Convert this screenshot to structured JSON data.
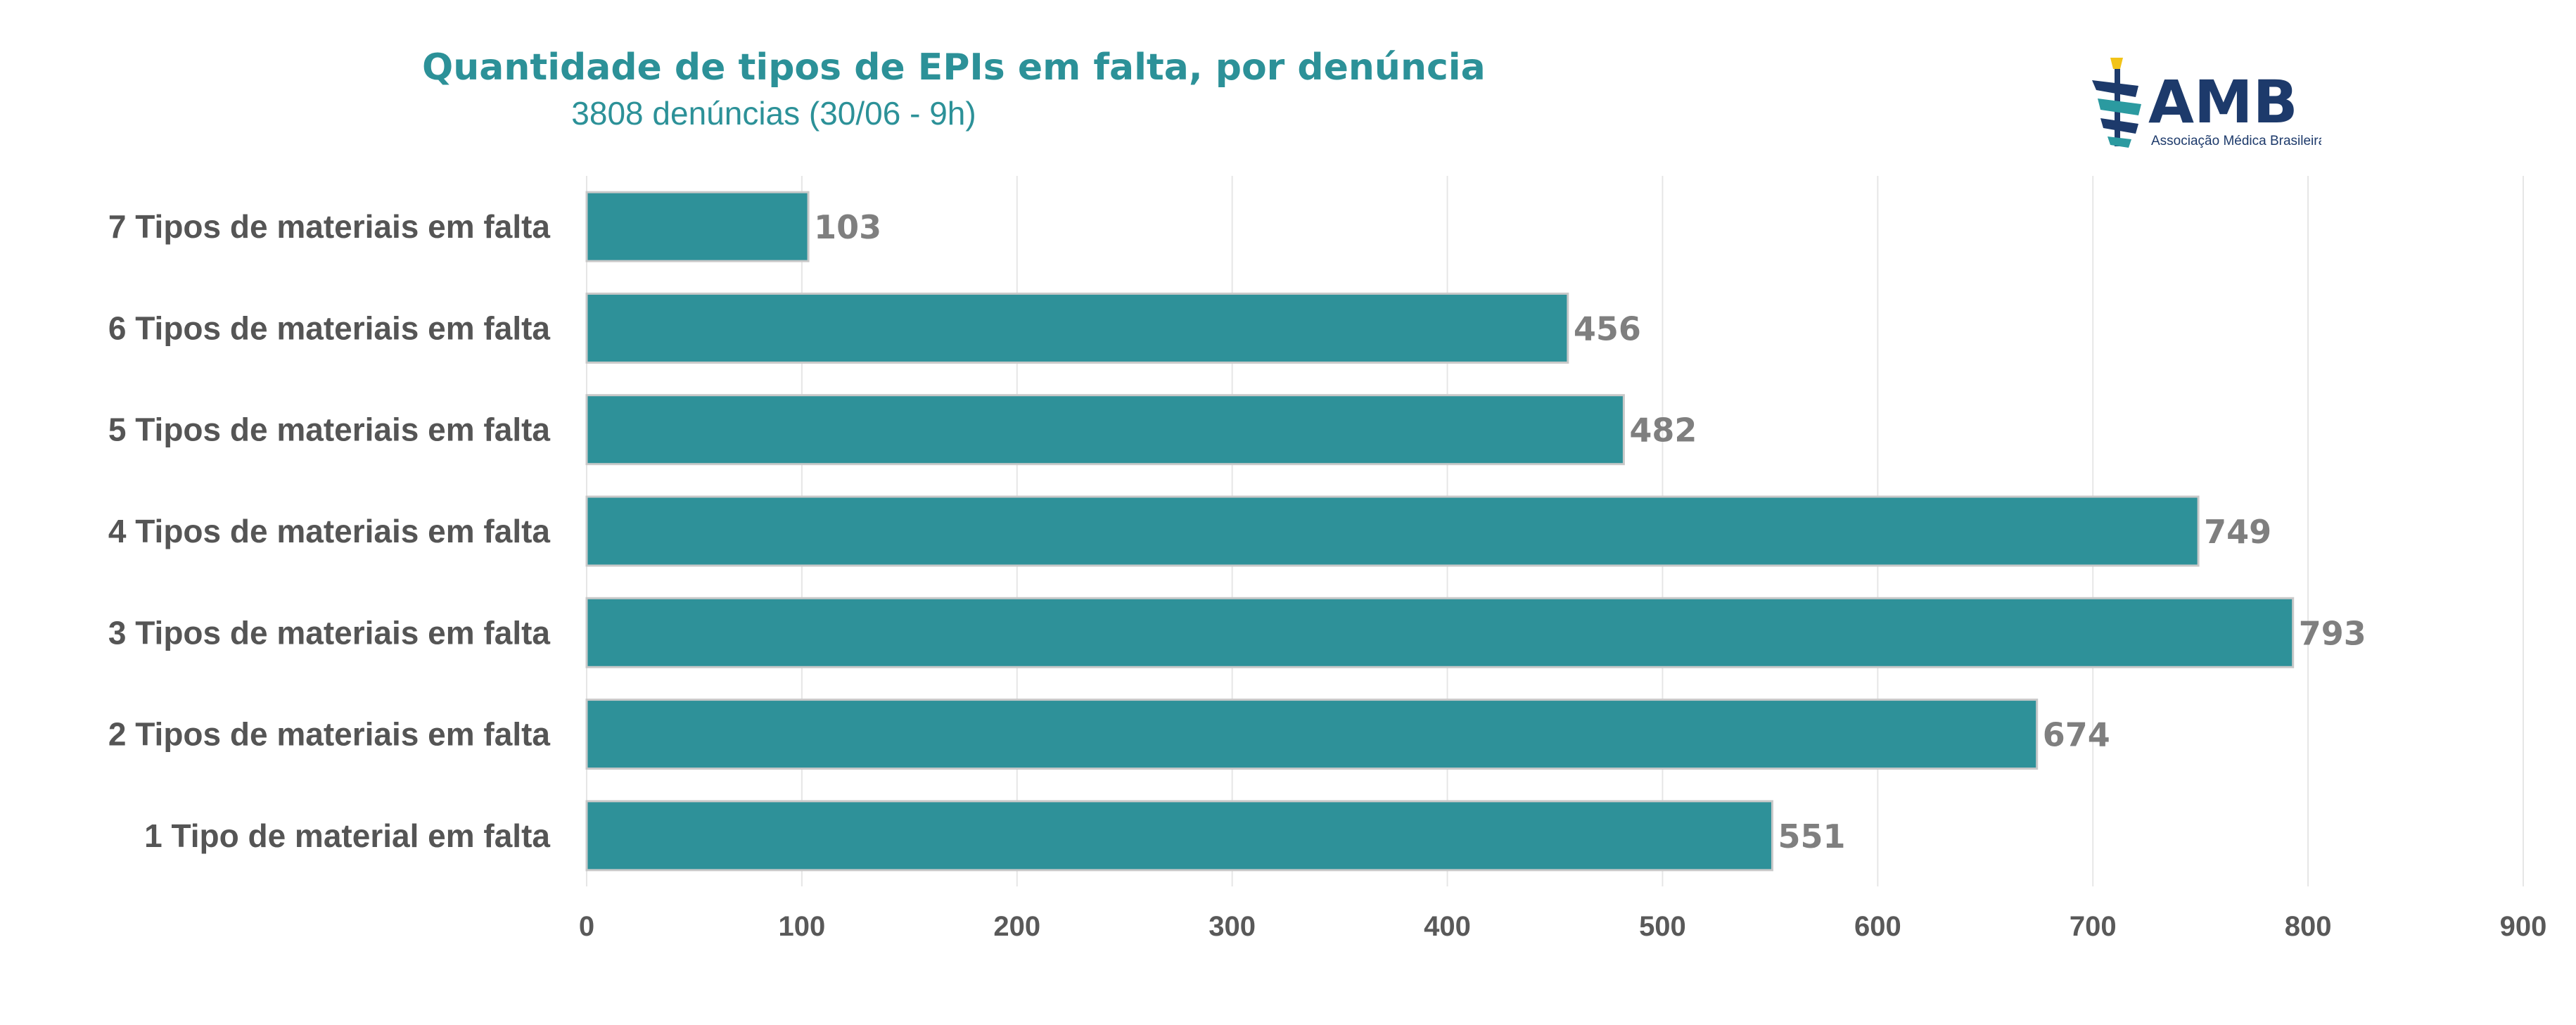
{
  "header": {
    "title": "Quantidade de tipos de EPIs em falta, por denúncia",
    "subtitle": "3808 denúncias (30/06 - 9h)"
  },
  "logo": {
    "text": "AMB",
    "tagline": "Associação Médica Brasileira",
    "colors": {
      "navy": "#1d3a6b",
      "teal": "#2b9aa0",
      "gold": "#f2c318"
    }
  },
  "chart_data": {
    "type": "bar",
    "orientation": "horizontal",
    "title": "Quantidade de tipos de EPIs em falta, por denúncia",
    "subtitle": "3808 denúncias (30/06 - 9h)",
    "categories": [
      "7 Tipos de materiais em falta",
      "6 Tipos de materiais em falta",
      "5 Tipos de materiais em falta",
      "4 Tipos de materiais em falta",
      "3 Tipos de materiais em falta",
      "2 Tipos de materiais em falta",
      "1 Tipo de material em falta"
    ],
    "values": [
      103,
      456,
      482,
      749,
      793,
      674,
      551
    ],
    "xlim": [
      0,
      900
    ],
    "xticks": [
      0,
      100,
      200,
      300,
      400,
      500,
      600,
      700,
      800,
      900
    ],
    "grid": true,
    "legend": "none",
    "data_labels": true,
    "colors": {
      "bar": "#2e9199",
      "bar_edge": "#c9c9c9",
      "grid": "#e6e6e6"
    }
  }
}
